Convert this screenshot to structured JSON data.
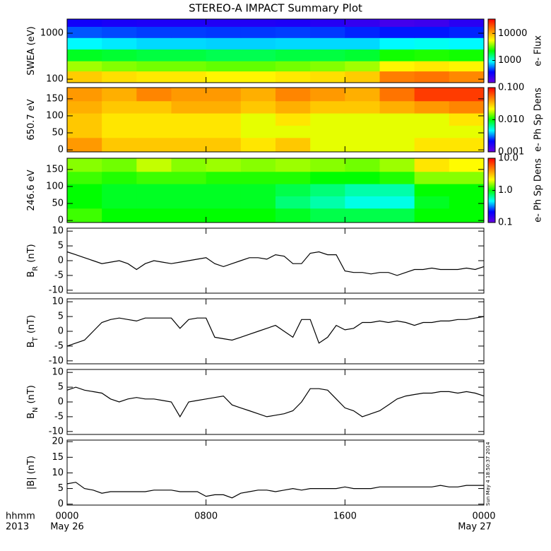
{
  "title": "STEREO-A IMPACT Summary Plot",
  "x_axis": {
    "xticks": [
      {
        "value": 0,
        "label": "0000"
      },
      {
        "value": 8,
        "label": "0800"
      },
      {
        "value": 16,
        "label": "1600"
      },
      {
        "value": 24,
        "label": "0000"
      }
    ],
    "time_label": "hhmm",
    "year_label": "2013",
    "start_date": "May 26",
    "end_date": "May 27",
    "x": [
      0,
      0.5,
      1,
      1.5,
      2,
      2.5,
      3,
      3.5,
      4,
      4.5,
      5,
      5.5,
      6,
      6.5,
      7,
      7.5,
      8,
      8.5,
      9,
      9.5,
      10,
      10.5,
      11,
      11.5,
      12,
      12.5,
      13,
      13.5,
      14,
      14.5,
      15,
      15.5,
      16,
      16.5,
      17,
      17.5,
      18,
      18.5,
      19,
      19.5,
      20,
      20.5,
      21,
      21.5,
      22,
      22.5,
      23,
      23.5,
      24
    ]
  },
  "stamp": "Sun May  4 18:50:37 2014",
  "chart_data": [
    {
      "type": "heatmap",
      "ylabel": "SWEA (eV)",
      "ylog": true,
      "ylim": [
        84,
        2030
      ],
      "yticks": [
        100,
        1000
      ],
      "xlim": [
        0,
        24
      ],
      "x_edges": [
        0,
        2,
        4,
        6,
        8,
        10,
        12,
        14,
        16,
        18,
        20,
        22,
        24
      ],
      "y_edges": [
        84,
        150,
        250,
        450,
        800,
        1400,
        2030
      ],
      "z": [
        [
          8000,
          7000,
          6500,
          6500,
          6000,
          6000,
          6500,
          7000,
          8000,
          14000,
          15000,
          13000
        ],
        [
          4000,
          3600,
          3400,
          3400,
          3200,
          3200,
          3400,
          3600,
          4000,
          6000,
          6500,
          6000
        ],
        [
          2000,
          1900,
          1800,
          1800,
          1700,
          1700,
          1800,
          1800,
          1900,
          2400,
          2500,
          2400
        ],
        [
          900,
          850,
          800,
          800,
          780,
          780,
          800,
          800,
          800,
          900,
          950,
          900
        ],
        [
          500,
          480,
          460,
          460,
          450,
          450,
          460,
          450,
          420,
          400,
          400,
          420
        ],
        [
          320,
          300,
          290,
          290,
          280,
          280,
          290,
          270,
          240,
          210,
          220,
          260
        ]
      ],
      "zlog": true,
      "zlim": [
        150,
        34000
      ],
      "zticks": [
        1000,
        10000
      ],
      "colorbar_label": "e- Flux",
      "colormap": [
        "#6a00e0",
        "#0000ff",
        "#00ffff",
        "#00ff00",
        "#ffff00",
        "#ff8000",
        "#ff0000"
      ]
    },
    {
      "type": "heatmap",
      "ylabel": "650.7 eV",
      "ylog": false,
      "ylim": [
        -6,
        183
      ],
      "yticks": [
        0,
        50,
        100,
        150
      ],
      "xlim": [
        0,
        24
      ],
      "x_edges": [
        0,
        2,
        4,
        6,
        8,
        10,
        12,
        14,
        16,
        18,
        20,
        22,
        24
      ],
      "y_edges": [
        -6,
        36,
        72,
        108,
        144,
        183
      ],
      "z": [
        [
          0.04,
          0.03,
          0.03,
          0.03,
          0.03,
          0.025,
          0.03,
          0.02,
          0.02,
          0.02,
          0.025,
          0.025
        ],
        [
          0.03,
          0.025,
          0.025,
          0.025,
          0.025,
          0.02,
          0.02,
          0.02,
          0.02,
          0.02,
          0.02,
          0.02
        ],
        [
          0.03,
          0.025,
          0.025,
          0.025,
          0.025,
          0.02,
          0.025,
          0.02,
          0.02,
          0.02,
          0.02,
          0.025
        ],
        [
          0.035,
          0.03,
          0.03,
          0.035,
          0.035,
          0.03,
          0.035,
          0.03,
          0.03,
          0.035,
          0.04,
          0.045
        ],
        [
          0.04,
          0.035,
          0.045,
          0.04,
          0.04,
          0.035,
          0.045,
          0.04,
          0.035,
          0.05,
          0.07,
          0.07
        ]
      ],
      "zlog": true,
      "zlim": [
        0.001,
        0.1
      ],
      "zticks": [
        0.001,
        {
          "value": 0.01,
          "label": "0.010"
        },
        {
          "value": 0.1,
          "label": "0.100"
        }
      ],
      "colorbar_label": "e- Ph Sp Dens",
      "colormap": [
        "#6a00e0",
        "#0000ff",
        "#00ffff",
        "#00ff00",
        "#ffff00",
        "#ff8000",
        "#ff0000"
      ]
    },
    {
      "type": "heatmap",
      "ylabel": "246.6 eV",
      "ylog": false,
      "ylim": [
        -6,
        183
      ],
      "yticks": [
        0,
        50,
        100,
        150
      ],
      "xlim": [
        0,
        24
      ],
      "x_edges": [
        0,
        2,
        4,
        6,
        8,
        10,
        12,
        14,
        16,
        18,
        20,
        22,
        24
      ],
      "y_edges": [
        -6,
        36,
        72,
        108,
        144,
        183
      ],
      "z": [
        [
          1.2,
          1,
          1,
          1,
          1,
          1,
          0.9,
          0.8,
          0.8,
          0.8,
          1,
          1
        ],
        [
          1,
          0.9,
          0.9,
          0.9,
          0.9,
          0.9,
          0.7,
          0.6,
          0.5,
          0.5,
          0.9,
          1
        ],
        [
          1,
          0.9,
          0.9,
          0.9,
          0.9,
          0.9,
          0.8,
          0.7,
          0.6,
          0.6,
          1,
          1
        ],
        [
          1.2,
          1.1,
          1.2,
          1.2,
          1.1,
          1.1,
          1.1,
          1,
          1,
          1.1,
          1.5,
          1.5
        ],
        [
          1.5,
          1.4,
          1.8,
          1.5,
          1.6,
          1.5,
          1.6,
          1.5,
          1.4,
          1.6,
          2.5,
          2.2
        ]
      ],
      "zlog": true,
      "zlim": [
        0.1,
        10
      ],
      "zticks": [
        0.1,
        {
          "value": 1,
          "label": "1.0"
        },
        {
          "value": 10,
          "label": "10.0"
        }
      ],
      "colorbar_label": "e- Ph Sp Dens",
      "colormap": [
        "#6a00e0",
        "#0000ff",
        "#00ffff",
        "#00ff00",
        "#ffff00",
        "#ff8000",
        "#ff0000"
      ]
    },
    {
      "type": "line",
      "ylabel": "B",
      "ylabel_sub": "R",
      "ylabel_unit": "(nT)",
      "ylim": [
        -11,
        11
      ],
      "yticks": [
        -10,
        -5,
        0,
        5,
        10
      ],
      "xlim": [
        0,
        24
      ],
      "color": "#000000",
      "values": [
        3,
        2,
        1,
        0,
        -1,
        -0.5,
        0,
        -1,
        -3,
        -1,
        0,
        -0.5,
        -1,
        -0.5,
        0,
        0.5,
        1,
        -1,
        -2,
        -1,
        0,
        1,
        1,
        0.5,
        2,
        1.5,
        -1,
        -1,
        2.5,
        3,
        2,
        2,
        -3.5,
        -4,
        -4,
        -4.5,
        -4,
        -4,
        -5,
        -4,
        -3,
        -3,
        -2.5,
        -3,
        -3,
        -3,
        -2.5,
        -3,
        -2
      ]
    },
    {
      "type": "line",
      "ylabel": "B",
      "ylabel_sub": "T",
      "ylabel_unit": "(nT)",
      "ylim": [
        -11,
        11
      ],
      "yticks": [
        -10,
        -5,
        0,
        5,
        10
      ],
      "xlim": [
        0,
        24
      ],
      "color": "#000000",
      "values": [
        -5,
        -4,
        -3,
        0,
        3,
        4,
        4.5,
        4,
        3.5,
        4.5,
        4.5,
        4.5,
        4.5,
        1,
        4,
        4.5,
        4.5,
        -2,
        -2.5,
        -3,
        -2,
        -1,
        0,
        1,
        2,
        0,
        -2,
        4,
        4,
        -4,
        -2,
        2,
        0.5,
        1,
        3,
        3,
        3.5,
        3,
        3.5,
        3,
        2,
        3,
        3,
        3.5,
        3.5,
        4,
        4,
        4.5,
        5
      ]
    },
    {
      "type": "line",
      "ylabel": "B",
      "ylabel_sub": "N",
      "ylabel_unit": "(nT)",
      "ylim": [
        -11,
        11
      ],
      "yticks": [
        -10,
        -5,
        0,
        5,
        10
      ],
      "xlim": [
        0,
        24
      ],
      "color": "#000000",
      "values": [
        4,
        5,
        4,
        3.5,
        3,
        1,
        0,
        1,
        1.5,
        1,
        1,
        0.5,
        0,
        -5,
        0,
        0.5,
        1,
        1.5,
        2,
        -1,
        -2,
        -3,
        -4,
        -5,
        -4.5,
        -4,
        -3,
        0,
        4.5,
        4.5,
        4,
        1,
        -2,
        -3,
        -5,
        -4,
        -3,
        -1,
        1,
        2,
        2.5,
        3,
        3,
        3.5,
        3.5,
        3,
        3.5,
        3,
        2
      ]
    },
    {
      "type": "line",
      "ylabel": "|B| (nT)",
      "ylim": [
        -0.3,
        20.5
      ],
      "yticks": [
        0,
        5,
        10,
        15,
        20
      ],
      "xlim": [
        0,
        24
      ],
      "color": "#000000",
      "values": [
        6.5,
        7,
        5,
        4.5,
        3.5,
        4,
        4,
        4,
        4,
        4,
        4.5,
        4.5,
        4.5,
        4,
        4,
        4,
        2.5,
        3,
        3,
        2,
        3.5,
        4,
        4.5,
        4.5,
        4,
        4.5,
        5,
        4.5,
        5,
        5,
        5,
        5,
        5.5,
        5,
        5,
        5,
        5.5,
        5.5,
        5.5,
        5.5,
        5.5,
        5.5,
        5.5,
        6,
        5.5,
        5.5,
        6,
        6,
        6
      ]
    }
  ]
}
